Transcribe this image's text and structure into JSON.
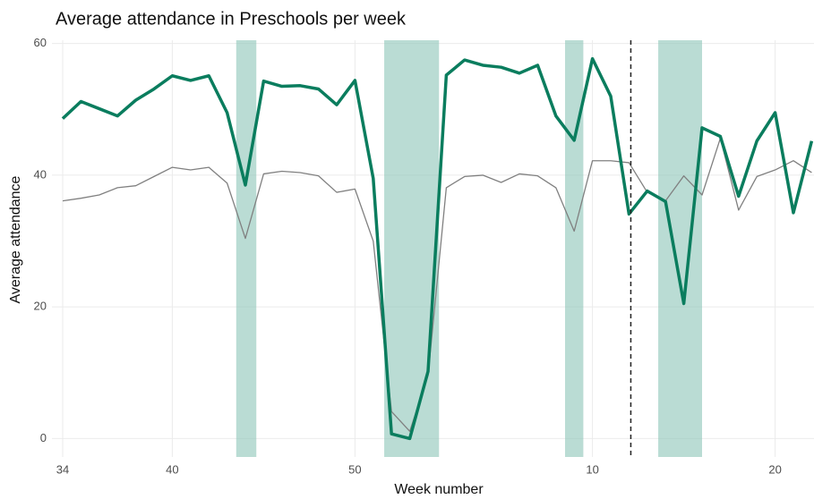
{
  "chart_data": {
    "type": "line",
    "title": "Average attendance in Preschools per week",
    "x_label": "Week number",
    "y_label": "Average attendance",
    "categories": [
      "34",
      null,
      null,
      null,
      null,
      null,
      "40",
      null,
      null,
      null,
      null,
      null,
      null,
      null,
      null,
      null,
      "50",
      null,
      null,
      null,
      null,
      null,
      null,
      null,
      null,
      null,
      null,
      null,
      null,
      "10",
      null,
      null,
      null,
      null,
      null,
      null,
      null,
      null,
      null,
      "20",
      null,
      null
    ],
    "series": [
      {
        "color": "#0a7d5e",
        "width": 3.5,
        "values": [
          48.6,
          51.2,
          50.1,
          49.0,
          51.4,
          53.1,
          55.1,
          54.4,
          55.1,
          49.5,
          38.5,
          54.3,
          53.5,
          53.6,
          53.1,
          50.7,
          54.4,
          39.5,
          0.7,
          0,
          10.2,
          55.2,
          57.5,
          56.7,
          56.4,
          55.5,
          56.7,
          49.0,
          45.3,
          57.7,
          52.0,
          34.1,
          37.6,
          36.0,
          20.5,
          47.2,
          45.9,
          36.8,
          45.2,
          49.5,
          34.3,
          45.2
        ]
      },
      {
        "color": "#808080",
        "width": 1.3,
        "values": [
          36.1,
          36.5,
          37.0,
          38.1,
          38.4,
          39.8,
          41.2,
          40.8,
          41.2,
          38.8,
          30.4,
          40.2,
          40.6,
          40.4,
          39.9,
          37.4,
          37.9,
          30.0,
          4.1,
          1.1,
          9.6,
          38.1,
          39.8,
          40.0,
          38.9,
          40.2,
          39.9,
          38.1,
          31.5,
          42.2,
          42.2,
          41.9,
          37.4,
          36.1,
          39.9,
          37.0,
          45.6,
          34.7,
          39.8,
          40.8,
          42.2,
          40.4
        ]
      }
    ],
    "shaded_regions": [
      [
        9.5,
        10.6
      ],
      [
        17.6,
        20.6
      ],
      [
        27.5,
        28.5
      ],
      [
        32.6,
        35.0
      ]
    ],
    "shade_color": "#8cc5b8",
    "vline": 31.1,
    "ylim": [
      -2.8,
      60.5
    ],
    "yticks": [
      0,
      20,
      40,
      60
    ],
    "grid": true
  }
}
